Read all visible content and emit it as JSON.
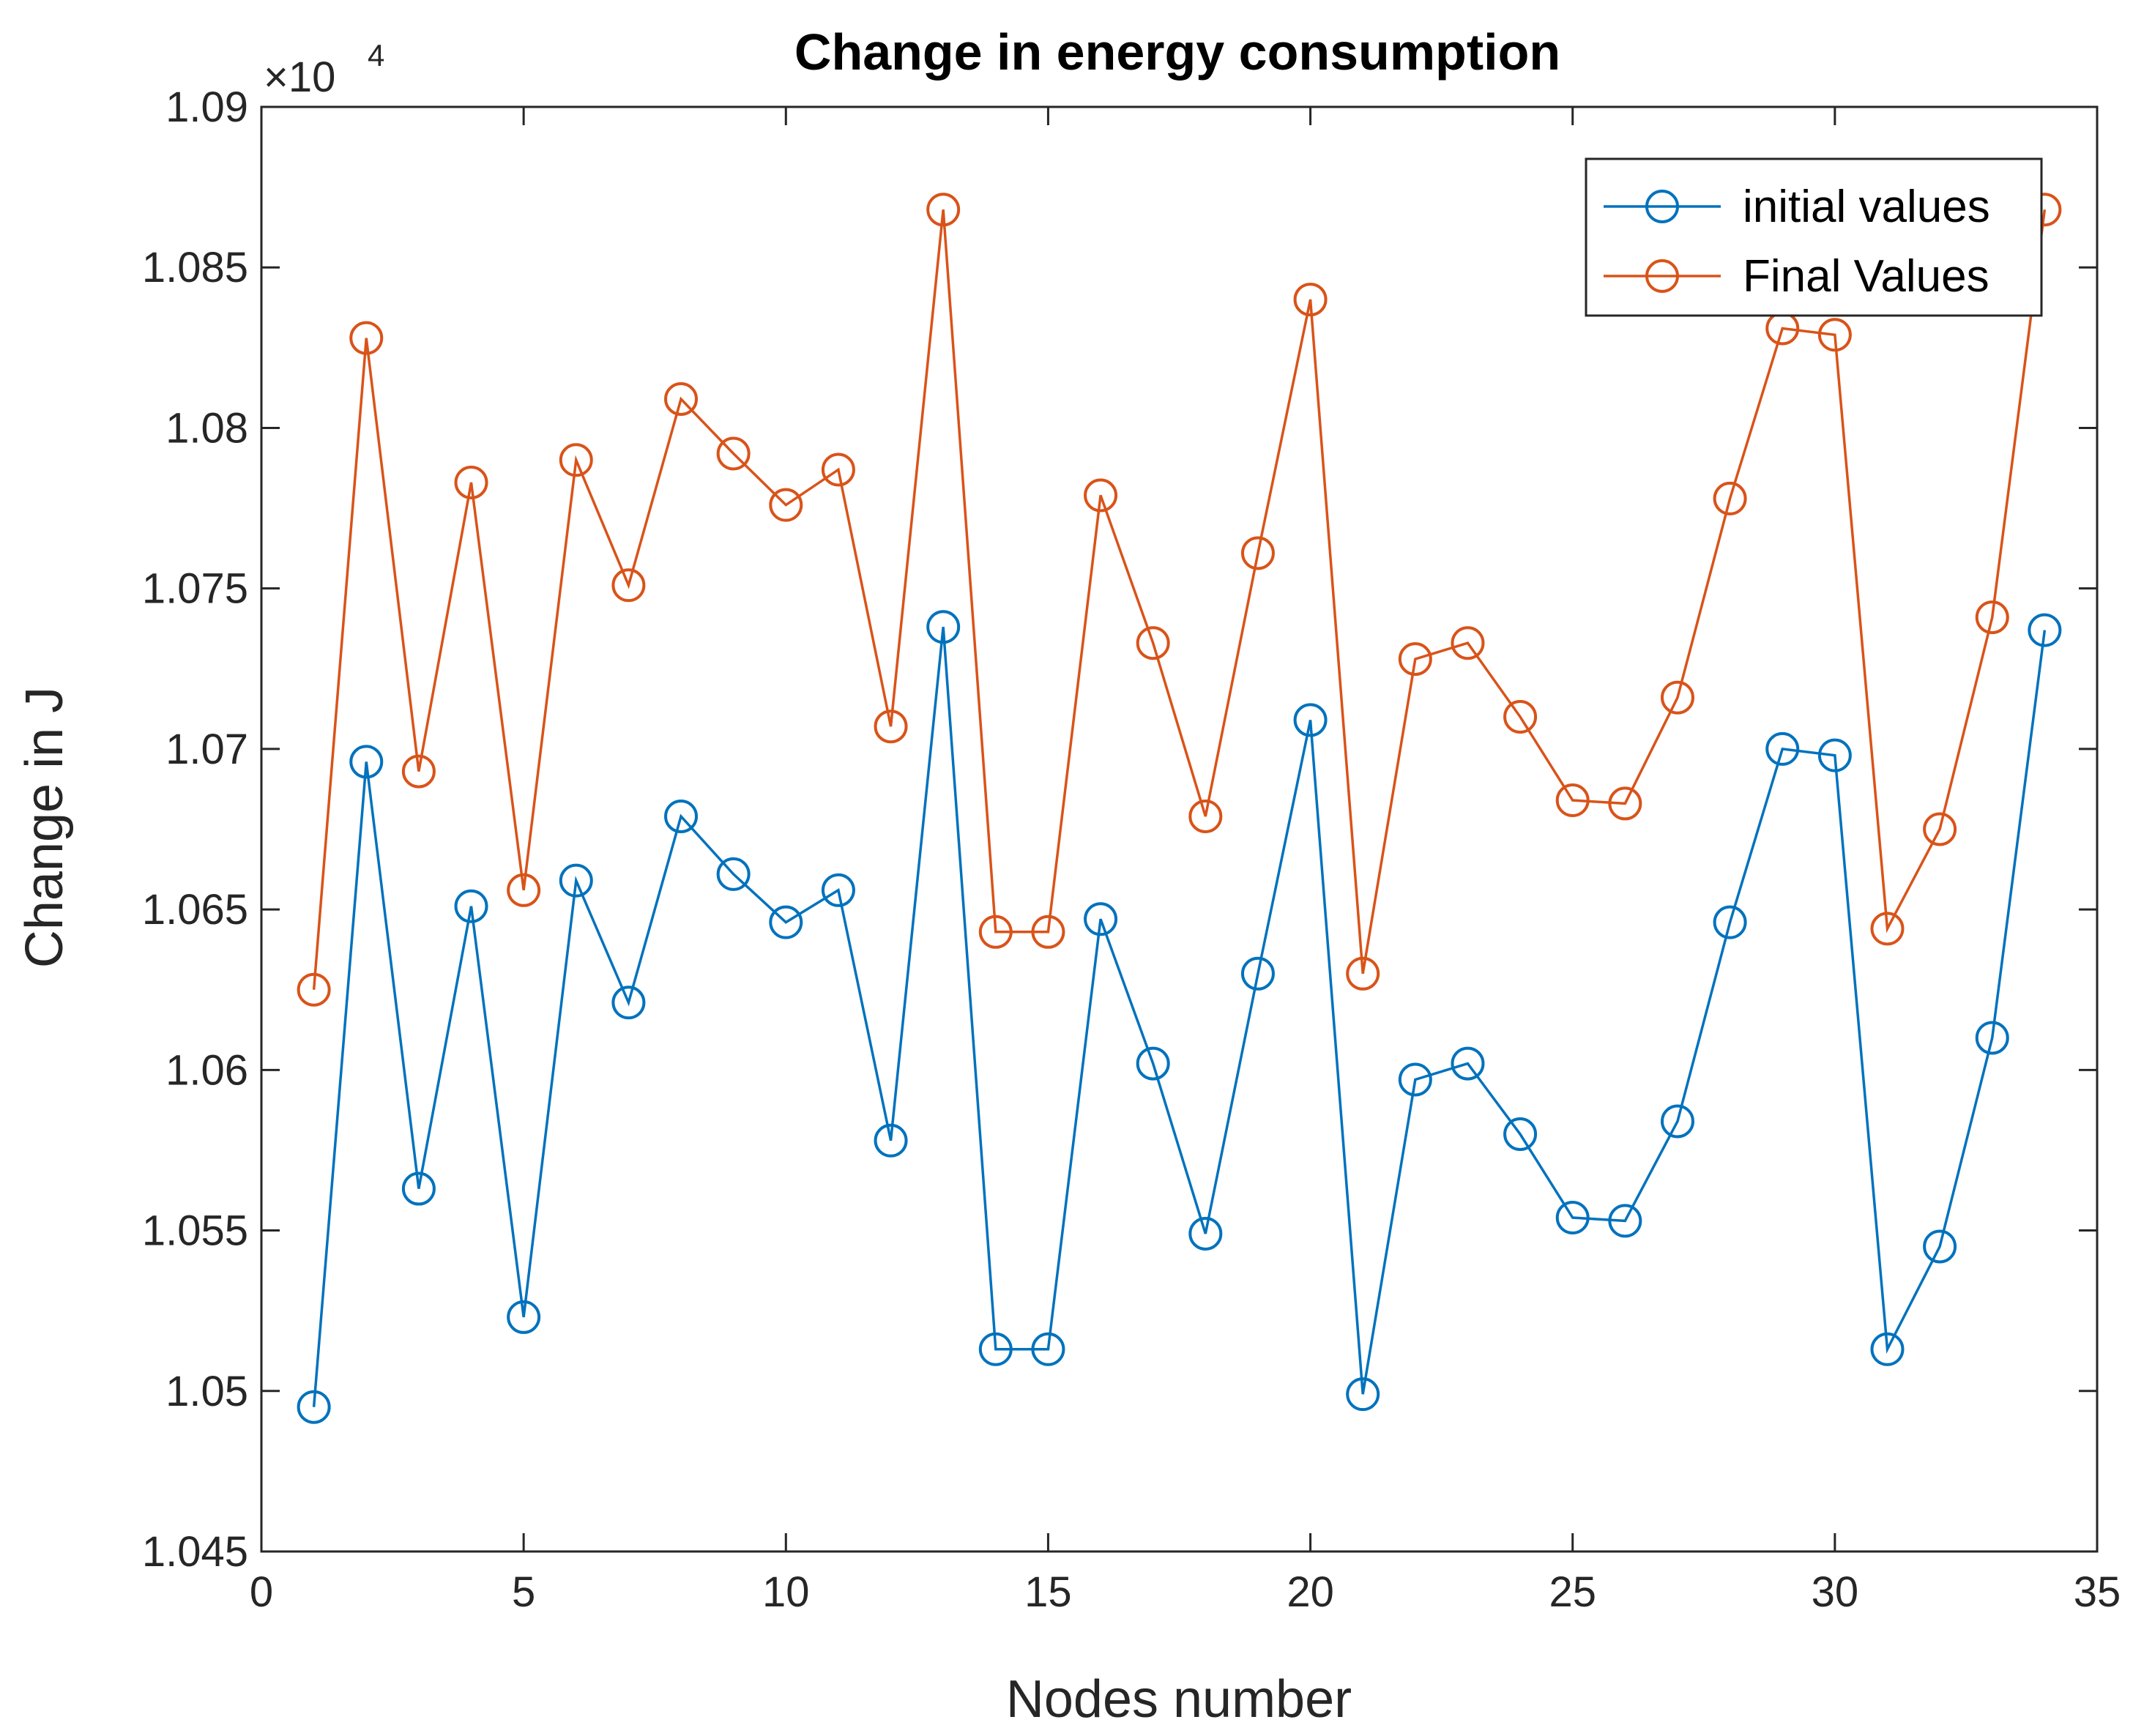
{
  "chart_data": {
    "type": "line",
    "title": "Change in energy consumption",
    "xlabel": "Nodes number",
    "ylabel": "Change in J",
    "y_exponent_label": "×10",
    "y_exponent_power": "4",
    "xlim": [
      0,
      35
    ],
    "ylim": [
      1.045,
      1.09
    ],
    "xticks": [
      0,
      5,
      10,
      15,
      20,
      25,
      30,
      35
    ],
    "xtick_labels": [
      "0",
      "5",
      "10",
      "15",
      "20",
      "25",
      "30",
      "35"
    ],
    "yticks": [
      1.045,
      1.05,
      1.055,
      1.06,
      1.065,
      1.07,
      1.075,
      1.08,
      1.085,
      1.09
    ],
    "ytick_labels": [
      "1.045",
      "1.05",
      "1.055",
      "1.06",
      "1.065",
      "1.07",
      "1.075",
      "1.08",
      "1.085",
      "1.09"
    ],
    "grid": false,
    "legend_position": "top-right",
    "x": [
      1,
      2,
      3,
      4,
      5,
      6,
      7,
      8,
      9,
      10,
      11,
      12,
      13,
      14,
      15,
      16,
      17,
      18,
      19,
      20,
      21,
      22,
      23,
      24,
      25,
      26,
      27,
      28,
      29,
      30,
      31,
      32,
      33,
      34
    ],
    "series": [
      {
        "name": "initial values",
        "color": "#0072BD",
        "marker": "circle",
        "values": [
          1.0495,
          1.0696,
          1.0563,
          1.0651,
          1.0523,
          1.0659,
          1.0621,
          1.0679,
          1.0661,
          1.0646,
          1.0656,
          1.0578,
          1.0738,
          1.0513,
          1.0513,
          1.0647,
          1.0602,
          1.0549,
          1.063,
          1.0709,
          1.0499,
          1.0597,
          1.0602,
          1.058,
          1.0554,
          1.0553,
          1.0584,
          1.0646,
          1.07,
          1.0698,
          1.0513,
          1.0545,
          1.061,
          1.0737
        ]
      },
      {
        "name": "Final Values",
        "color": "#D95319",
        "marker": "circle",
        "values": [
          1.0625,
          1.0828,
          1.0693,
          1.0783,
          1.0656,
          1.079,
          1.0751,
          1.0809,
          1.0792,
          1.0776,
          1.0787,
          1.0707,
          1.0868,
          1.0643,
          1.0643,
          1.0779,
          1.0733,
          1.0679,
          1.0761,
          1.084,
          1.063,
          1.0728,
          1.0733,
          1.071,
          1.0684,
          1.0683,
          1.0716,
          1.0778,
          1.0831,
          1.0829,
          1.0644,
          1.0675,
          1.0741,
          1.0868
        ]
      }
    ]
  }
}
